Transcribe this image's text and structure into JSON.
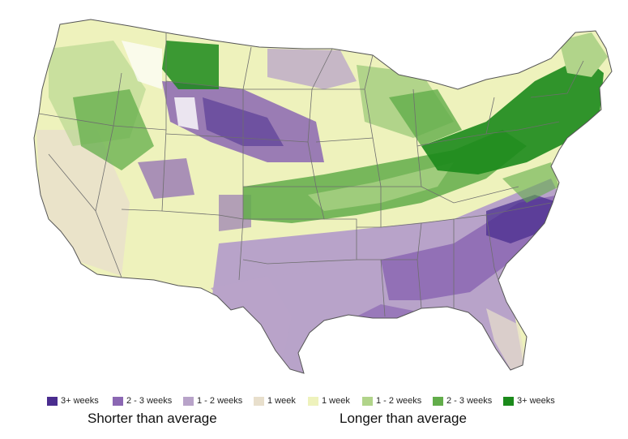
{
  "legend": {
    "items": [
      {
        "label": "3+ weeks",
        "color": "#4a2d8f"
      },
      {
        "label": "2 - 3 weeks",
        "color": "#8b67b3"
      },
      {
        "label": "1 - 2 weeks",
        "color": "#b8a3c9"
      },
      {
        "label": "1 week",
        "color": "#e8dfcc"
      },
      {
        "label": "1 week",
        "color": "#eef2bc"
      },
      {
        "label": "1 - 2 weeks",
        "color": "#b1d48a"
      },
      {
        "label": "2 - 3 weeks",
        "color": "#62ad4a"
      },
      {
        "label": "3+ weeks",
        "color": "#1b8a1b"
      }
    ],
    "shorter_label": "Shorter than average",
    "longer_label": "Longer than average"
  },
  "colors": {
    "short_strong": "#4a2d8f",
    "short_mid": "#8b67b3",
    "short_light": "#b8a3c9",
    "neutral_short": "#e8dfcc",
    "neutral_long": "#eef2bc",
    "long_light": "#b1d48a",
    "long_mid": "#62ad4a",
    "long_strong": "#1b8a1b",
    "borders": "#6e6e6e",
    "no_data": "#ffffff"
  }
}
